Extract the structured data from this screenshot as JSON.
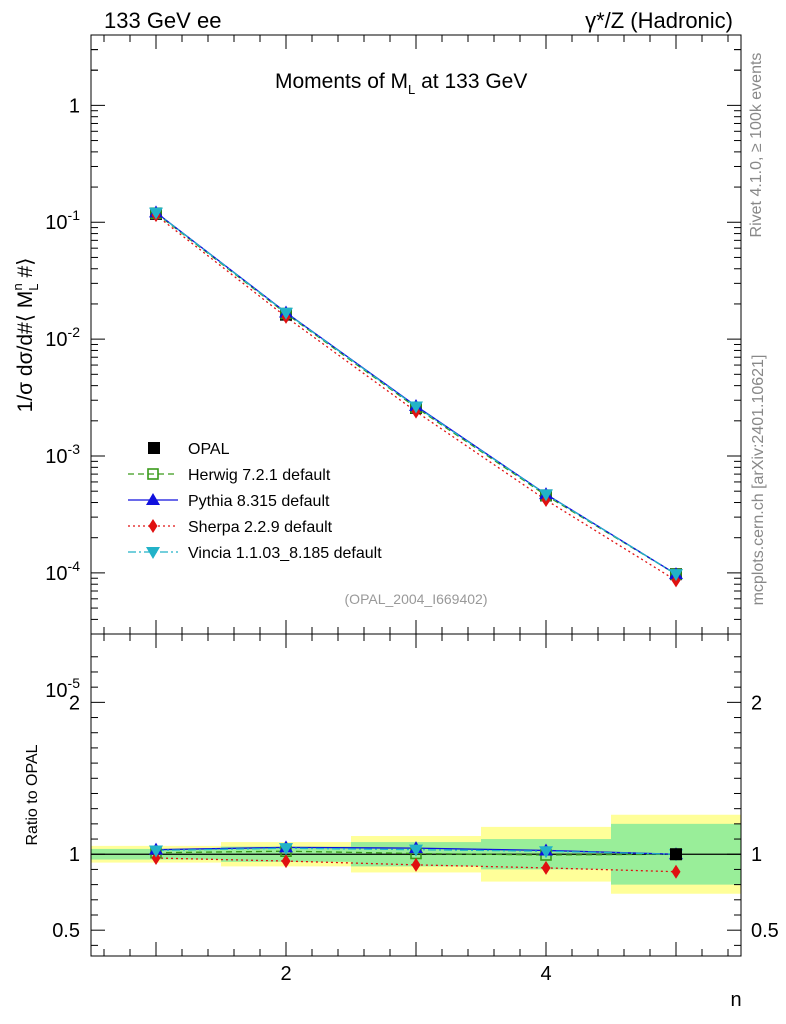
{
  "header": {
    "left": "133 GeV ee",
    "right": "γ*/Z (Hadronic)"
  },
  "side": {
    "rivet": "Rivet 4.1.0, ≥ 100k events",
    "mcplots": "mcplots.cern.ch [arXiv:2401.10621]"
  },
  "chart_data": {
    "type": "line",
    "title": "Moments of M_L at 133 GeV",
    "ylabel": "1/σ  dσ/d#⟨ M_L^n #⟩",
    "xlabel": "n",
    "x": [
      1,
      2,
      3,
      4,
      5
    ],
    "xlim": [
      0.5,
      5.5
    ],
    "ylim": [
      3e-05,
      4
    ],
    "yscale": "log",
    "x_ticks": [
      "2",
      "4"
    ],
    "y_ticks": [
      "1",
      "10^-1",
      "10^-2",
      "10^-3",
      "10^-4",
      "10^-5"
    ],
    "data_series": {
      "name": "OPAL",
      "values": [
        0.118,
        0.0162,
        0.00258,
        0.00046,
        9.75e-05
      ],
      "ratio_band_inner": [
        0.035,
        0.05,
        0.08,
        0.1,
        0.2
      ],
      "ratio_band_outer": [
        0.055,
        0.08,
        0.12,
        0.18,
        0.26
      ]
    },
    "series": [
      {
        "name": "Herwig 7.2.1 default",
        "color": "#3a9a1a",
        "style": "dashed",
        "marker": "open-square",
        "values": [
          0.1195,
          0.01655,
          0.0026,
          0.00046,
          9.75e-05
        ],
        "ratio": [
          1.01,
          1.02,
          1.005,
          0.995,
          1.0
        ]
      },
      {
        "name": "Pythia 8.315 default",
        "color": "#1010dd",
        "style": "solid",
        "marker": "triangle-up",
        "values": [
          0.1215,
          0.0169,
          0.00268,
          0.000472,
          9.75e-05
        ],
        "ratio": [
          1.03,
          1.045,
          1.04,
          1.025,
          1.0
        ]
      },
      {
        "name": "Sherpa 2.2.9 default",
        "color": "#e01010",
        "style": "dotted",
        "marker": "diamond",
        "values": [
          0.115,
          0.0155,
          0.0024,
          0.00042,
          8.62e-05
        ],
        "ratio": [
          0.975,
          0.955,
          0.93,
          0.91,
          0.885
        ]
      },
      {
        "name": "Vincia 1.1.03_8.185 default",
        "color": "#22b2c8",
        "style": "dashdot",
        "marker": "triangle-down",
        "values": [
          0.121,
          0.0168,
          0.00265,
          0.00047,
          9.75e-05
        ],
        "ratio": [
          1.025,
          1.04,
          1.03,
          1.02,
          1.0
        ]
      }
    ],
    "source_label": "(OPAL_2004_I669402)",
    "ratio_panel": {
      "ylabel": "Ratio to OPAL",
      "ylim": [
        0.33,
        2.45
      ],
      "y_ticks": [
        "0.5",
        "1",
        "2"
      ]
    },
    "legend_position": "lower-left"
  }
}
